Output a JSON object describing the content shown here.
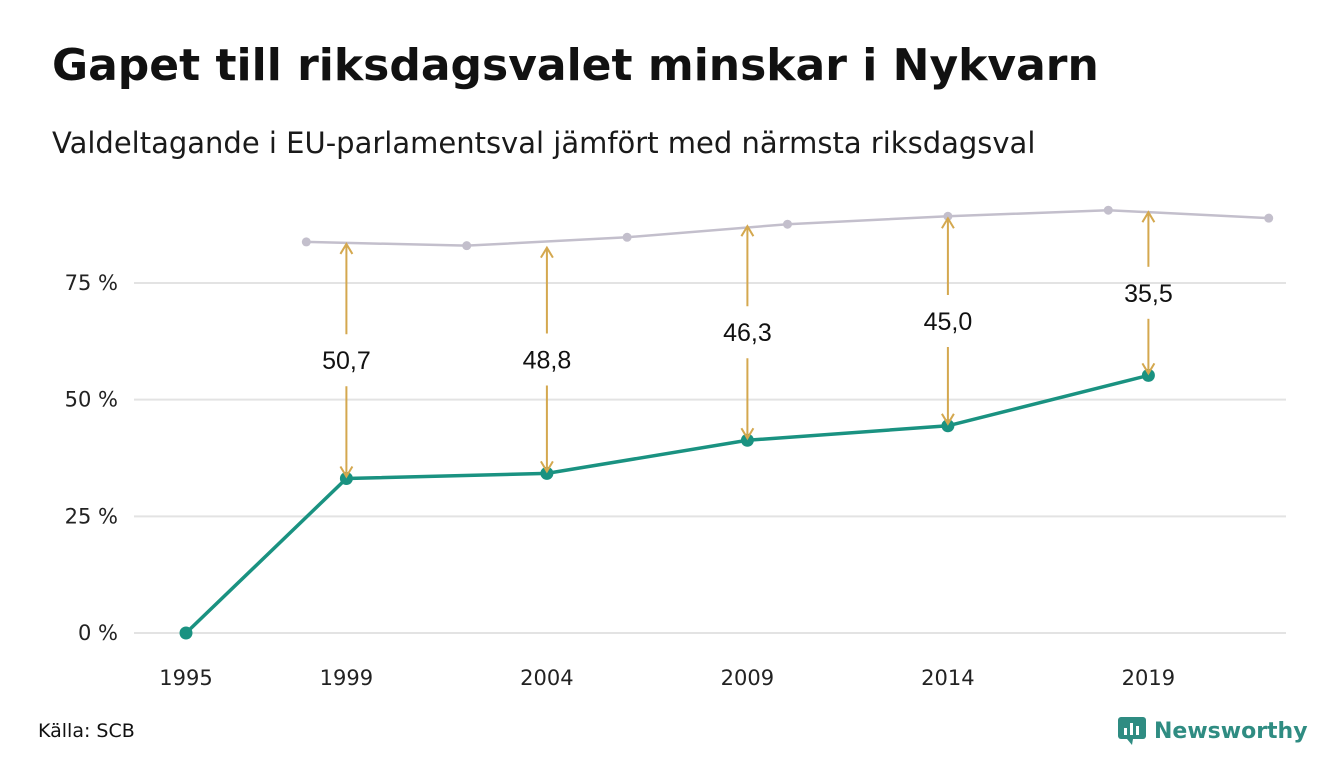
{
  "header": {
    "title": "Gapet till riksdagsvalet minskar i Nykvarn",
    "subtitle": "Valdeltagande i EU-parlamentsval jämfört med närmsta riksdagsval"
  },
  "footer": {
    "source": "Källa: SCB",
    "brand_name": "Newsworthy",
    "brand_icon": "bar-chart-badge-icon"
  },
  "chart_data": {
    "type": "line",
    "x_ticks": [
      "1995",
      "1999",
      "2004",
      "2009",
      "2014",
      "2019"
    ],
    "y_ticks": [
      "0 %",
      "25 %",
      "50 %",
      "75 %"
    ],
    "ylim": [
      0,
      95
    ],
    "xlim": [
      1995,
      2022
    ],
    "grid": true,
    "series": [
      {
        "name": "",
        "role": "eu_parliament",
        "color": "#1a9281",
        "x": [
          1995,
          1999,
          2004,
          2009,
          2014,
          2019
        ],
        "y": [
          0,
          33.1,
          34.2,
          41.3,
          44.4,
          55.2
        ]
      },
      {
        "name": "",
        "role": "riksdag",
        "color": "#c3bfcc",
        "x": [
          1998,
          2002,
          2006,
          2010,
          2014,
          2018,
          2022
        ],
        "y": [
          83.8,
          83.0,
          84.8,
          87.6,
          89.3,
          90.6,
          88.9
        ]
      }
    ],
    "gaps": {
      "color": "#d4a84f",
      "items": [
        {
          "x": 1999,
          "from": 83.8,
          "to": 33.1,
          "label": "50,7"
        },
        {
          "x": 2004,
          "from": 83.0,
          "to": 34.2,
          "label": "48,8"
        },
        {
          "x": 2009,
          "from": 87.6,
          "to": 41.3,
          "label": "46,3"
        },
        {
          "x": 2014,
          "from": 89.3,
          "to": 44.4,
          "label": "45,0"
        },
        {
          "x": 2019,
          "from": 90.6,
          "to": 55.2,
          "label": "35,5"
        }
      ]
    }
  }
}
